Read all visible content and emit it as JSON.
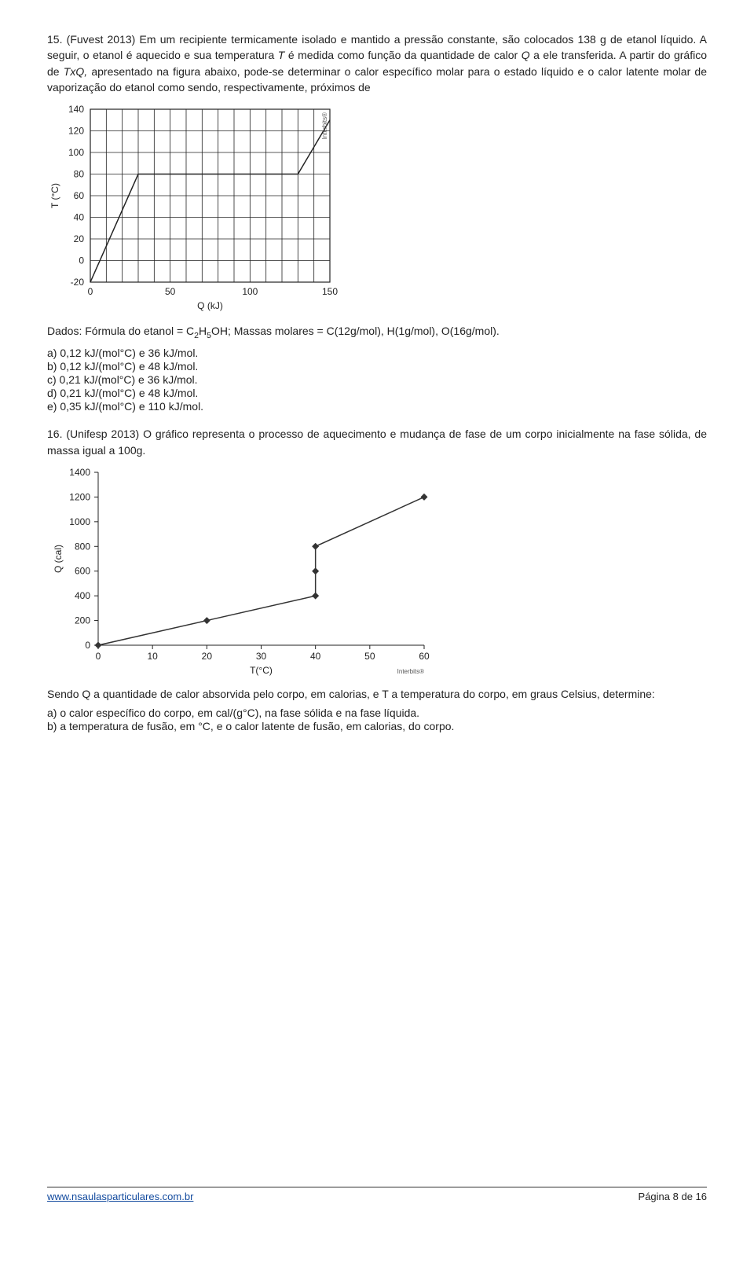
{
  "q15": {
    "number": "15.",
    "source": "(Fuvest 2013)",
    "text1": "Em um recipiente termicamente isolado e mantido a pressão constante, são colocados 138 g de etanol líquido. A seguir, o etanol é aquecido e sua temperatura ",
    "text2": " é medida como função da quantidade de calor ",
    "text3": " a ele transferida. A partir do gráfico de ",
    "text4": " apresentado na figura abaixo, pode-se determinar o calor específico molar para o estado líquido e o calor latente molar de vaporização do etanol como sendo, respectivamente, próximos de",
    "T": "T",
    "Q": "Q",
    "TxQ": "TxQ,",
    "data_line": "Dados: Fórmula do etanol = C",
    "data_line2": "H",
    "data_line3": "OH; Massas molares = C(12g/mol), H(1g/mol), O(16g/mol).",
    "sub2": "2",
    "sub5": "5",
    "alts": {
      "a": "a) 0,12 kJ/(mol°C) e 36 kJ/mol.",
      "b": "b) 0,12 kJ/(mol°C) e 48 kJ/mol.",
      "c": "c) 0,21 kJ/(mol°C) e 36 kJ/mol.",
      "d": "d) 0,21 kJ/(mol°C) e 48 kJ/mol.",
      "e": "e) 0,35 kJ/(mol°C) e 110 kJ/mol."
    }
  },
  "q16": {
    "number": "16.",
    "source": "(Unifesp 2013)",
    "text": "O gráfico representa o processo de aquecimento e mudança de fase de um corpo inicialmente na fase sólida, de massa igual a 100g.",
    "closing1": "Sendo Q a quantidade de calor absorvida pelo corpo, em calorias, e T a temperatura do corpo, em graus Celsius, determine:",
    "closing_a": "a) o calor específico do corpo, em cal/(g°C), na fase sólida e na fase líquida.",
    "closing_b": "b) a temperatura de fusão, em °C, e o calor latente de fusão, em calorias, do corpo."
  },
  "chart1": {
    "xlabel": "Q (kJ)",
    "ylabel": "T (°C)",
    "watermark": "Interbits®",
    "ylim_min": -20,
    "ylim_max": 140,
    "xlim_min": 0,
    "xlim_max": 150,
    "xticks": [
      0,
      50,
      100,
      150
    ],
    "yticks": [
      -20,
      0,
      20,
      40,
      60,
      80,
      100,
      120,
      140
    ],
    "points_x": [
      0,
      30,
      130,
      150
    ],
    "points_y": [
      -20,
      80,
      80,
      130
    ],
    "plot_color": "#222222",
    "grid_color": "#222222",
    "background": "#ffffff"
  },
  "chart2": {
    "xlabel": "T(°C)",
    "ylabel": "Q (cal)",
    "watermark": "Interbits®",
    "ylim_min": 0,
    "ylim_max": 1400,
    "xlim_min": 0,
    "xlim_max": 60,
    "xticks": [
      0,
      10,
      20,
      30,
      40,
      50,
      60
    ],
    "yticks": [
      0,
      200,
      400,
      600,
      800,
      1000,
      1200,
      1400
    ],
    "points_x": [
      0,
      20,
      40,
      40,
      40,
      60
    ],
    "points_y": [
      0,
      200,
      400,
      600,
      800,
      1200
    ],
    "plot_color": "#333333",
    "background": "#ffffff"
  },
  "footer": {
    "url": "www.nsaulasparticulares.com.br",
    "page": "Página 8 de 16"
  }
}
